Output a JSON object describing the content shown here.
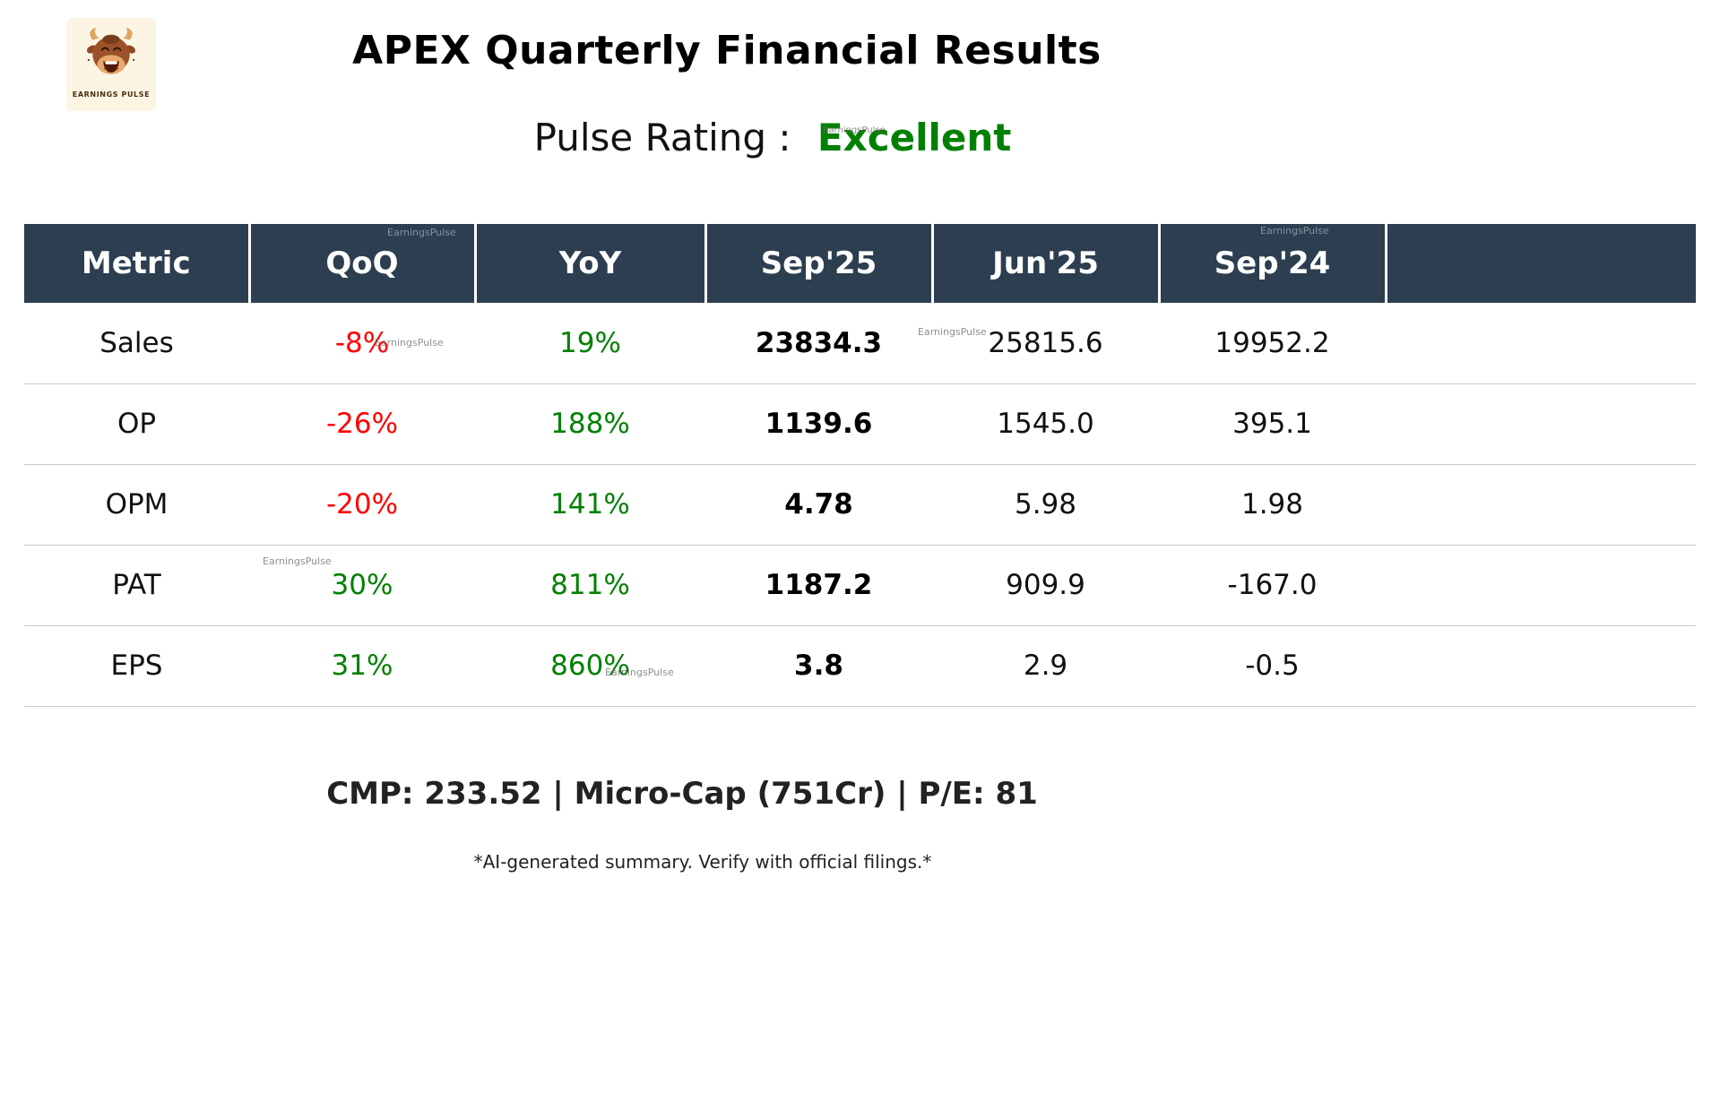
{
  "logo": {
    "caption": "EARNINGS PULSE"
  },
  "header": {
    "title": "APEX Quarterly Financial Results",
    "rating_label": "Pulse Rating :",
    "rating_value": "Excellent"
  },
  "watermark": {
    "text": "EarningsPulse"
  },
  "table": {
    "columns": [
      "Metric",
      "QoQ",
      "YoY",
      "Sep'25",
      "Jun'25",
      "Sep'24"
    ],
    "rows": [
      {
        "metric": "Sales",
        "qoq": "-8%",
        "qoq_color": "#ff0000",
        "yoy": "19%",
        "yoy_color": "#008000",
        "sep25": "23834.3",
        "jun25": "25815.6",
        "sep24": "19952.2"
      },
      {
        "metric": "OP",
        "qoq": "-26%",
        "qoq_color": "#ff0000",
        "yoy": "188%",
        "yoy_color": "#008000",
        "sep25": "1139.6",
        "jun25": "1545.0",
        "sep24": "395.1"
      },
      {
        "metric": "OPM",
        "qoq": "-20%",
        "qoq_color": "#ff0000",
        "yoy": "141%",
        "yoy_color": "#008000",
        "sep25": "4.78",
        "jun25": "5.98",
        "sep24": "1.98"
      },
      {
        "metric": "PAT",
        "qoq": "30%",
        "qoq_color": "#008000",
        "yoy": "811%",
        "yoy_color": "#008000",
        "sep25": "1187.2",
        "jun25": "909.9",
        "sep24": "-167.0"
      },
      {
        "metric": "EPS",
        "qoq": "31%",
        "qoq_color": "#008000",
        "yoy": "860%",
        "yoy_color": "#008000",
        "sep25": "3.8",
        "jun25": "2.9",
        "sep24": "-0.5"
      }
    ]
  },
  "footer": {
    "summary": "CMP: 233.52 | Micro-Cap (751Cr) | P/E: 81",
    "disclaimer": "*AI-generated summary. Verify with official filings.*"
  },
  "colors": {
    "header_bg": "#2c3e50",
    "positive": "#008000",
    "negative": "#ff0000",
    "rating": "#008000"
  },
  "chart_data": {
    "type": "table",
    "title": "APEX Quarterly Financial Results",
    "subtitle": "Pulse Rating : Excellent",
    "columns": [
      "Metric",
      "QoQ",
      "YoY",
      "Sep'25",
      "Jun'25",
      "Sep'24"
    ],
    "rows": [
      [
        "Sales",
        "-8%",
        "19%",
        23834.3,
        25815.6,
        19952.2
      ],
      [
        "OP",
        "-26%",
        "188%",
        1139.6,
        1545.0,
        395.1
      ],
      [
        "OPM",
        "-20%",
        "141%",
        4.78,
        5.98,
        1.98
      ],
      [
        "PAT",
        "30%",
        "811%",
        1187.2,
        909.9,
        -167.0
      ],
      [
        "EPS",
        "31%",
        "860%",
        3.8,
        2.9,
        -0.5
      ]
    ],
    "footnote": "CMP: 233.52 | Micro-Cap (751Cr) | P/E: 81"
  }
}
